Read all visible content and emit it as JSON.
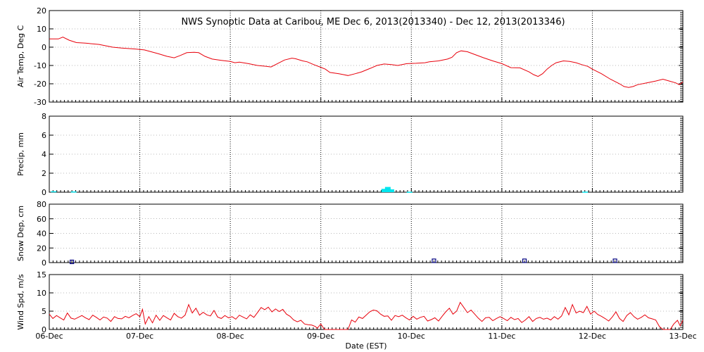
{
  "chart_data": {
    "type": "line",
    "title": "NWS Synoptic Data at Caribou, ME   Dec  6, 2013(2013340) - Dec 12, 2013(2013346)",
    "xlabel": "Date (EST)",
    "x_ticks": [
      "06-Dec",
      "07-Dec",
      "08-Dec",
      "09-Dec",
      "10-Dec",
      "11-Dec",
      "12-Dec",
      "13-Dec"
    ],
    "x_range_days": [
      0,
      7
    ],
    "colors": {
      "line": "#e8000b",
      "precip": "#00e5ee",
      "snow": "#000080",
      "grid": "#000000"
    },
    "panels": [
      {
        "id": "air-temp",
        "ylabel": "Air Temp, Deg C",
        "ylim": [
          -30,
          20
        ],
        "yticks": [
          20,
          10,
          0,
          -10,
          -20,
          -30
        ],
        "series_type": "line",
        "series": [
          [
            0.0,
            4.5
          ],
          [
            0.1,
            4.5
          ],
          [
            0.15,
            5.5
          ],
          [
            0.22,
            3.8
          ],
          [
            0.3,
            2.5
          ],
          [
            0.4,
            2.2
          ],
          [
            0.55,
            1.5
          ],
          [
            0.7,
            0.0
          ],
          [
            0.8,
            -0.5
          ],
          [
            0.95,
            -1.0
          ],
          [
            1.05,
            -1.5
          ],
          [
            1.2,
            -3.5
          ],
          [
            1.3,
            -5.0
          ],
          [
            1.38,
            -5.8
          ],
          [
            1.45,
            -4.5
          ],
          [
            1.52,
            -3.0
          ],
          [
            1.6,
            -2.8
          ],
          [
            1.65,
            -3.0
          ],
          [
            1.72,
            -5.0
          ],
          [
            1.8,
            -6.5
          ],
          [
            1.9,
            -7.2
          ],
          [
            2.0,
            -7.8
          ],
          [
            2.05,
            -8.5
          ],
          [
            2.1,
            -8.2
          ],
          [
            2.2,
            -9.0
          ],
          [
            2.3,
            -10.0
          ],
          [
            2.4,
            -10.5
          ],
          [
            2.45,
            -10.8
          ],
          [
            2.52,
            -9.0
          ],
          [
            2.6,
            -7.0
          ],
          [
            2.68,
            -6.0
          ],
          [
            2.72,
            -6.3
          ],
          [
            2.8,
            -7.5
          ],
          [
            2.85,
            -8.0
          ],
          [
            2.92,
            -9.5
          ],
          [
            3.0,
            -11.0
          ],
          [
            3.05,
            -12.0
          ],
          [
            3.1,
            -13.8
          ],
          [
            3.2,
            -14.5
          ],
          [
            3.25,
            -15.0
          ],
          [
            3.3,
            -15.5
          ],
          [
            3.38,
            -14.5
          ],
          [
            3.45,
            -13.5
          ],
          [
            3.55,
            -11.5
          ],
          [
            3.62,
            -10.0
          ],
          [
            3.7,
            -9.2
          ],
          [
            3.78,
            -9.5
          ],
          [
            3.85,
            -10.0
          ],
          [
            3.95,
            -9.0
          ],
          [
            4.05,
            -8.8
          ],
          [
            4.15,
            -8.5
          ],
          [
            4.2,
            -8.0
          ],
          [
            4.3,
            -7.5
          ],
          [
            4.4,
            -6.5
          ],
          [
            4.45,
            -5.5
          ],
          [
            4.5,
            -3.0
          ],
          [
            4.55,
            -2.0
          ],
          [
            4.62,
            -2.5
          ],
          [
            4.7,
            -4.0
          ],
          [
            4.8,
            -5.8
          ],
          [
            4.9,
            -7.5
          ],
          [
            5.0,
            -9.0
          ],
          [
            5.1,
            -11.2
          ],
          [
            5.2,
            -11.3
          ],
          [
            5.3,
            -13.5
          ],
          [
            5.35,
            -15.0
          ],
          [
            5.4,
            -16.0
          ],
          [
            5.45,
            -14.5
          ],
          [
            5.5,
            -12.0
          ],
          [
            5.55,
            -10.0
          ],
          [
            5.6,
            -8.5
          ],
          [
            5.68,
            -7.5
          ],
          [
            5.75,
            -7.8
          ],
          [
            5.82,
            -8.5
          ],
          [
            5.88,
            -9.5
          ],
          [
            5.95,
            -10.5
          ],
          [
            6.0,
            -12.0
          ],
          [
            6.1,
            -14.5
          ],
          [
            6.2,
            -17.5
          ],
          [
            6.3,
            -20.0
          ],
          [
            6.35,
            -21.5
          ],
          [
            6.4,
            -22.0
          ],
          [
            6.45,
            -21.5
          ],
          [
            6.5,
            -20.5
          ],
          [
            6.6,
            -19.5
          ],
          [
            6.7,
            -18.5
          ],
          [
            6.78,
            -17.5
          ],
          [
            6.85,
            -18.5
          ],
          [
            6.92,
            -19.5
          ],
          [
            6.96,
            -20.5
          ],
          [
            7.0,
            -19.0
          ]
        ]
      },
      {
        "id": "precip",
        "ylabel": "Precip, mm",
        "ylim": [
          0,
          8
        ],
        "yticks": [
          8,
          6,
          4,
          2,
          0
        ],
        "series_type": "bar",
        "series": [
          [
            0.05,
            0.1
          ],
          [
            0.27,
            0.08
          ],
          [
            3.7,
            0.35
          ],
          [
            3.74,
            0.55
          ],
          [
            3.78,
            0.3
          ],
          [
            3.98,
            0.05
          ],
          [
            5.92,
            0.06
          ]
        ]
      },
      {
        "id": "snow-depth",
        "ylabel": "Snow Dep, cm",
        "ylim": [
          0,
          80
        ],
        "yticks": [
          80,
          60,
          40,
          20,
          0
        ],
        "series_type": "scatter",
        "series": [
          [
            0.25,
            0.5
          ],
          [
            4.25,
            2.0
          ],
          [
            5.25,
            2.0
          ],
          [
            6.25,
            2.0
          ]
        ]
      },
      {
        "id": "wind-speed",
        "ylabel": "Wind Spd, m/s",
        "ylim": [
          0,
          15
        ],
        "yticks": [
          15,
          10,
          5,
          0
        ],
        "series_type": "line",
        "series": [
          [
            0.0,
            4.2
          ],
          [
            0.04,
            3.0
          ],
          [
            0.08,
            3.8
          ],
          [
            0.12,
            3.2
          ],
          [
            0.16,
            2.6
          ],
          [
            0.2,
            4.5
          ],
          [
            0.24,
            3.1
          ],
          [
            0.28,
            2.8
          ],
          [
            0.32,
            3.3
          ],
          [
            0.36,
            3.8
          ],
          [
            0.4,
            3.2
          ],
          [
            0.44,
            2.7
          ],
          [
            0.48,
            3.9
          ],
          [
            0.52,
            3.3
          ],
          [
            0.56,
            2.6
          ],
          [
            0.6,
            3.4
          ],
          [
            0.64,
            3.1
          ],
          [
            0.68,
            2.2
          ],
          [
            0.72,
            3.5
          ],
          [
            0.76,
            3.0
          ],
          [
            0.8,
            2.9
          ],
          [
            0.84,
            3.6
          ],
          [
            0.88,
            3.2
          ],
          [
            0.92,
            3.8
          ],
          [
            0.96,
            4.3
          ],
          [
            1.0,
            3.5
          ],
          [
            1.03,
            5.5
          ],
          [
            1.06,
            1.5
          ],
          [
            1.1,
            3.5
          ],
          [
            1.14,
            1.8
          ],
          [
            1.18,
            3.9
          ],
          [
            1.22,
            2.5
          ],
          [
            1.26,
            3.8
          ],
          [
            1.3,
            3.2
          ],
          [
            1.34,
            2.6
          ],
          [
            1.38,
            4.4
          ],
          [
            1.42,
            3.5
          ],
          [
            1.46,
            3.1
          ],
          [
            1.5,
            3.9
          ],
          [
            1.54,
            6.8
          ],
          [
            1.58,
            4.5
          ],
          [
            1.62,
            5.8
          ],
          [
            1.66,
            3.9
          ],
          [
            1.7,
            4.7
          ],
          [
            1.74,
            4.0
          ],
          [
            1.78,
            3.7
          ],
          [
            1.82,
            5.2
          ],
          [
            1.86,
            3.4
          ],
          [
            1.9,
            3.0
          ],
          [
            1.94,
            3.8
          ],
          [
            1.98,
            3.2
          ],
          [
            2.02,
            3.5
          ],
          [
            2.06,
            2.8
          ],
          [
            2.1,
            3.9
          ],
          [
            2.14,
            3.4
          ],
          [
            2.18,
            2.9
          ],
          [
            2.22,
            4.0
          ],
          [
            2.26,
            3.3
          ],
          [
            2.3,
            4.6
          ],
          [
            2.34,
            6.0
          ],
          [
            2.38,
            5.4
          ],
          [
            2.42,
            6.1
          ],
          [
            2.46,
            4.8
          ],
          [
            2.5,
            5.6
          ],
          [
            2.54,
            4.9
          ],
          [
            2.58,
            5.5
          ],
          [
            2.62,
            4.2
          ],
          [
            2.66,
            3.6
          ],
          [
            2.7,
            2.6
          ],
          [
            2.74,
            2.1
          ],
          [
            2.78,
            2.5
          ],
          [
            2.82,
            1.5
          ],
          [
            2.86,
            1.3
          ],
          [
            2.9,
            1.2
          ],
          [
            2.94,
            0.8
          ],
          [
            2.96,
            0.3
          ],
          [
            3.0,
            1.5
          ],
          [
            3.04,
            0.0
          ],
          [
            3.06,
            0.0
          ],
          [
            3.3,
            0.0
          ],
          [
            3.34,
            2.6
          ],
          [
            3.38,
            2.0
          ],
          [
            3.42,
            3.4
          ],
          [
            3.46,
            3.0
          ],
          [
            3.5,
            3.9
          ],
          [
            3.54,
            4.8
          ],
          [
            3.58,
            5.3
          ],
          [
            3.62,
            5.1
          ],
          [
            3.66,
            4.2
          ],
          [
            3.7,
            3.6
          ],
          [
            3.74,
            3.7
          ],
          [
            3.78,
            2.5
          ],
          [
            3.82,
            3.8
          ],
          [
            3.86,
            3.5
          ],
          [
            3.9,
            3.9
          ],
          [
            3.94,
            3.2
          ],
          [
            3.98,
            2.6
          ],
          [
            4.02,
            3.6
          ],
          [
            4.06,
            2.8
          ],
          [
            4.1,
            3.3
          ],
          [
            4.14,
            3.6
          ],
          [
            4.18,
            2.3
          ],
          [
            4.22,
            2.7
          ],
          [
            4.26,
            3.2
          ],
          [
            4.3,
            2.3
          ],
          [
            4.34,
            3.6
          ],
          [
            4.38,
            4.8
          ],
          [
            4.42,
            5.8
          ],
          [
            4.46,
            4.2
          ],
          [
            4.5,
            5.0
          ],
          [
            4.54,
            7.4
          ],
          [
            4.58,
            6.0
          ],
          [
            4.62,
            4.6
          ],
          [
            4.66,
            5.3
          ],
          [
            4.7,
            4.2
          ],
          [
            4.74,
            3.1
          ],
          [
            4.78,
            2.2
          ],
          [
            4.82,
            3.2
          ],
          [
            4.86,
            3.3
          ],
          [
            4.9,
            2.4
          ],
          [
            4.94,
            3.0
          ],
          [
            4.98,
            3.5
          ],
          [
            5.02,
            3.0
          ],
          [
            5.06,
            2.4
          ],
          [
            5.1,
            3.3
          ],
          [
            5.14,
            2.7
          ],
          [
            5.18,
            3.0
          ],
          [
            5.22,
            1.9
          ],
          [
            5.26,
            2.6
          ],
          [
            5.3,
            3.5
          ],
          [
            5.34,
            2.2
          ],
          [
            5.38,
            3.0
          ],
          [
            5.42,
            3.3
          ],
          [
            5.46,
            2.8
          ],
          [
            5.5,
            3.1
          ],
          [
            5.54,
            2.6
          ],
          [
            5.58,
            3.5
          ],
          [
            5.62,
            2.8
          ],
          [
            5.66,
            3.7
          ],
          [
            5.7,
            6.0
          ],
          [
            5.74,
            4.0
          ],
          [
            5.78,
            6.8
          ],
          [
            5.82,
            4.5
          ],
          [
            5.86,
            5.0
          ],
          [
            5.9,
            4.6
          ],
          [
            5.94,
            6.3
          ],
          [
            5.98,
            4.2
          ],
          [
            6.02,
            5.0
          ],
          [
            6.06,
            4.1
          ],
          [
            6.1,
            3.6
          ],
          [
            6.14,
            3.0
          ],
          [
            6.18,
            2.3
          ],
          [
            6.22,
            3.4
          ],
          [
            6.26,
            4.8
          ],
          [
            6.3,
            3.0
          ],
          [
            6.34,
            2.2
          ],
          [
            6.38,
            3.8
          ],
          [
            6.42,
            4.6
          ],
          [
            6.46,
            3.5
          ],
          [
            6.5,
            2.8
          ],
          [
            6.54,
            3.3
          ],
          [
            6.58,
            4.0
          ],
          [
            6.62,
            3.2
          ],
          [
            6.66,
            2.9
          ],
          [
            6.7,
            2.6
          ],
          [
            6.74,
            0.8
          ],
          [
            6.78,
            0.0
          ],
          [
            6.86,
            0.0
          ],
          [
            6.9,
            1.5
          ],
          [
            6.94,
            2.5
          ],
          [
            6.97,
            1.0
          ],
          [
            7.0,
            2.5
          ]
        ]
      }
    ]
  }
}
